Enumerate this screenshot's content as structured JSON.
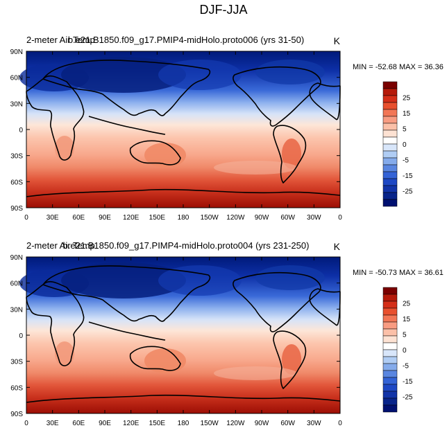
{
  "main_title": "DJF-JJA",
  "panels": [
    {
      "left_label": "2-meter Air Temp",
      "center_label": "b.e21.B1850.f09_g17.PMIP4-midHolo.proto006 (yrs 31-50)",
      "units": "K",
      "stats": "MIN = -52.68 MAX =  36.36"
    },
    {
      "left_label": "2-meter Air Temp",
      "center_label": "b.e21.B1850.f09_g17.PIMP4-midHolo.proto004 (yrs 231-250)",
      "units": "K",
      "stats": "MIN = -50.73 MAX =  36.61"
    }
  ],
  "lat_ticks": [
    "90N",
    "60N",
    "30N",
    "0",
    "30S",
    "60S",
    "90S"
  ],
  "lon_ticks": [
    "0",
    "30E",
    "60E",
    "90E",
    "120E",
    "150E",
    "180",
    "150W",
    "120W",
    "90W",
    "60W",
    "30W",
    "0"
  ],
  "colorbar": {
    "labels": [
      "25",
      "15",
      "5",
      "0",
      "-5",
      "-15",
      "-25"
    ],
    "colors": [
      "#7a0000",
      "#b51a0a",
      "#d42e18",
      "#e8502e",
      "#f27656",
      "#f89c82",
      "#fbc0a8",
      "#fde2d3",
      "#ffffff",
      "#d8e6fa",
      "#b0cdf4",
      "#85abeb",
      "#5a86e0",
      "#3463d6",
      "#1e48c4",
      "#1234a8",
      "#08248a",
      "#001070"
    ]
  }
}
